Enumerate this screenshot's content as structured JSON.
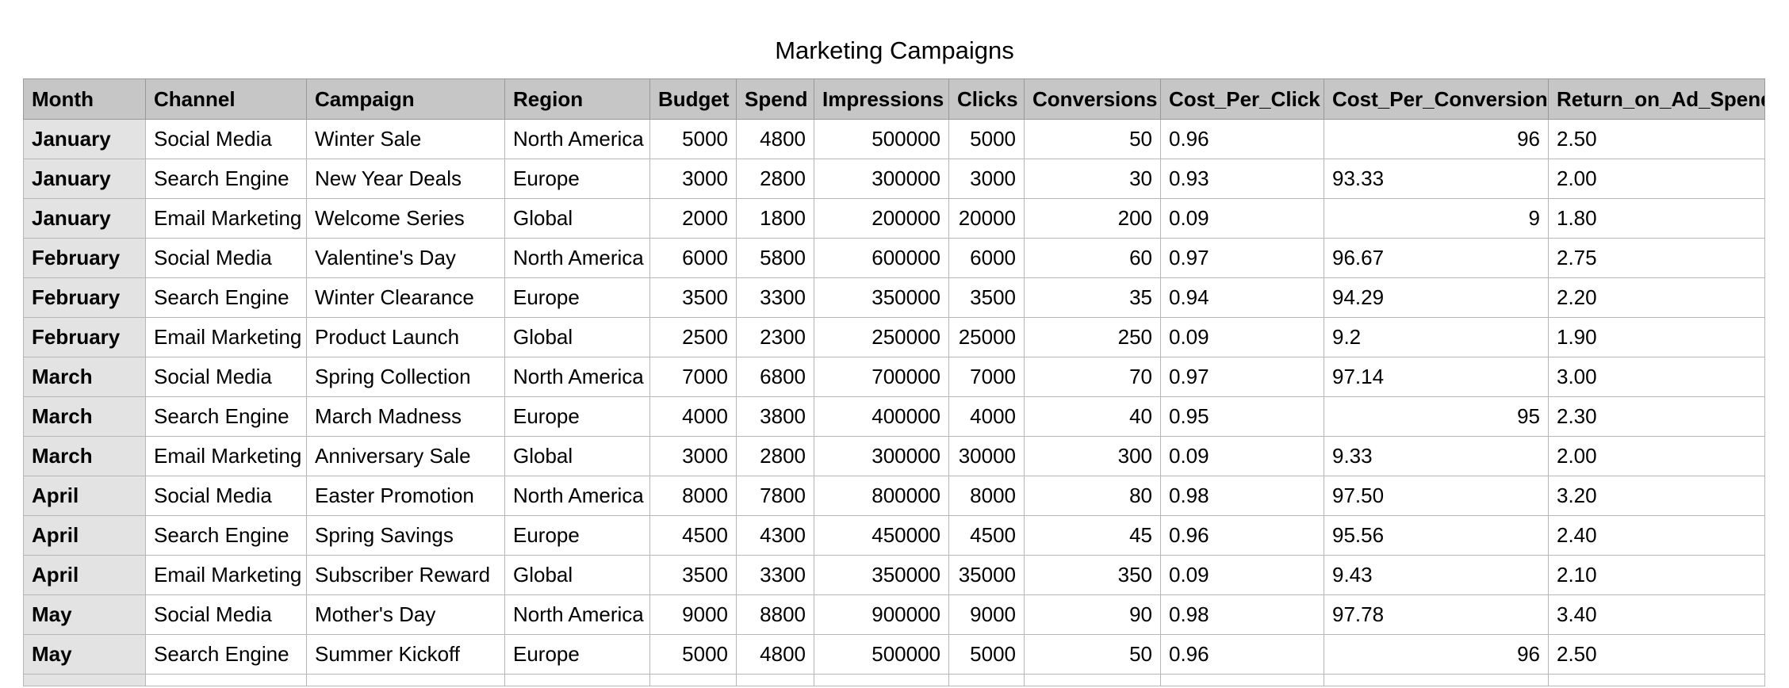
{
  "title": "Marketing Campaigns",
  "columns": [
    "Month",
    "Channel",
    "Campaign",
    "Region",
    "Budget",
    "Spend",
    "Impressions",
    "Clicks",
    "Conversions",
    "Cost_Per_Click",
    "Cost_Per_Conversion",
    "Return_on_Ad_Spend"
  ],
  "rows": [
    [
      "January",
      "Social Media",
      "Winter Sale",
      "North America",
      "5000",
      "4800",
      "500000",
      "5000",
      "50",
      "0.96",
      "96",
      "2.50"
    ],
    [
      "January",
      "Search Engine",
      "New Year Deals",
      "Europe",
      "3000",
      "2800",
      "300000",
      "3000",
      "30",
      "0.93",
      "93.33",
      "2.00"
    ],
    [
      "January",
      "Email Marketing",
      "Welcome Series",
      "Global",
      "2000",
      "1800",
      "200000",
      "20000",
      "200",
      "0.09",
      "9",
      "1.80"
    ],
    [
      "February",
      "Social Media",
      "Valentine's Day",
      "North America",
      "6000",
      "5800",
      "600000",
      "6000",
      "60",
      "0.97",
      "96.67",
      "2.75"
    ],
    [
      "February",
      "Search Engine",
      "Winter Clearance",
      "Europe",
      "3500",
      "3300",
      "350000",
      "3500",
      "35",
      "0.94",
      "94.29",
      "2.20"
    ],
    [
      "February",
      "Email Marketing",
      "Product Launch",
      "Global",
      "2500",
      "2300",
      "250000",
      "25000",
      "250",
      "0.09",
      "9.2",
      "1.90"
    ],
    [
      "March",
      "Social Media",
      "Spring Collection",
      "North America",
      "7000",
      "6800",
      "700000",
      "7000",
      "70",
      "0.97",
      "97.14",
      "3.00"
    ],
    [
      "March",
      "Search Engine",
      "March Madness",
      "Europe",
      "4000",
      "3800",
      "400000",
      "4000",
      "40",
      "0.95",
      "95",
      "2.30"
    ],
    [
      "March",
      "Email Marketing",
      "Anniversary Sale",
      "Global",
      "3000",
      "2800",
      "300000",
      "30000",
      "300",
      "0.09",
      "9.33",
      "2.00"
    ],
    [
      "April",
      "Social Media",
      "Easter Promotion",
      "North America",
      "8000",
      "7800",
      "800000",
      "8000",
      "80",
      "0.98",
      "97.50",
      "3.20"
    ],
    [
      "April",
      "Search Engine",
      "Spring Savings",
      "Europe",
      "4500",
      "4300",
      "450000",
      "4500",
      "45",
      "0.96",
      "95.56",
      "2.40"
    ],
    [
      "April",
      "Email Marketing",
      "Subscriber Reward",
      "Global",
      "3500",
      "3300",
      "350000",
      "35000",
      "350",
      "0.09",
      "9.43",
      "2.10"
    ],
    [
      "May",
      "Social Media",
      "Mother's Day",
      "North America",
      "9000",
      "8800",
      "900000",
      "9000",
      "90",
      "0.98",
      "97.78",
      "3.40"
    ],
    [
      "May",
      "Search Engine",
      "Summer Kickoff",
      "Europe",
      "5000",
      "4800",
      "500000",
      "5000",
      "50",
      "0.96",
      "96",
      "2.50"
    ]
  ]
}
